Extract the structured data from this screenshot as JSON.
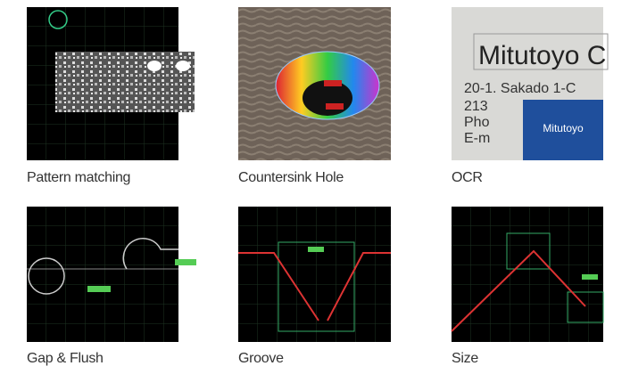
{
  "items": [
    {
      "caption": "Pattern matching"
    },
    {
      "caption": "Countersink Hole"
    },
    {
      "caption": "OCR",
      "image_text": [
        "Mitutoyo C",
        "20-1. Sakado 1-C",
        "213",
        "Pho",
        "E-m",
        "Mitutoyo"
      ]
    },
    {
      "caption": "Gap & Flush"
    },
    {
      "caption": "Groove"
    },
    {
      "caption": "Size"
    }
  ]
}
